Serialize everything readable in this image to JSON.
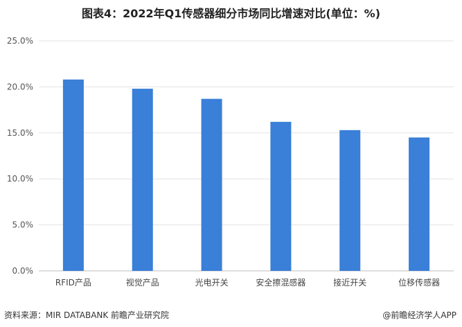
{
  "chart_data": {
    "type": "bar",
    "title": "图表4：2022年Q1传感器细分市场同比增速对比(单位：%)",
    "categories": [
      "RFID产品",
      "视觉产品",
      "光电开关",
      "安全擦混感器",
      "接近开关",
      "位移传感器"
    ],
    "values": [
      20.8,
      19.8,
      18.7,
      16.2,
      15.3,
      14.5
    ],
    "ylim": [
      0,
      25
    ],
    "yticks": [
      0,
      5,
      10,
      15,
      20,
      25
    ],
    "ytick_labels": [
      "0.0%",
      "5.0%",
      "10.0%",
      "15.0%",
      "20.0%",
      "25.0%"
    ],
    "bar_color": "#3a7fd8",
    "grid": true,
    "legend": "none"
  },
  "footer": {
    "source": "资料来源：MIR DATABANK 前瞻产业研究院",
    "credit": "@前瞻经济学人APP"
  }
}
